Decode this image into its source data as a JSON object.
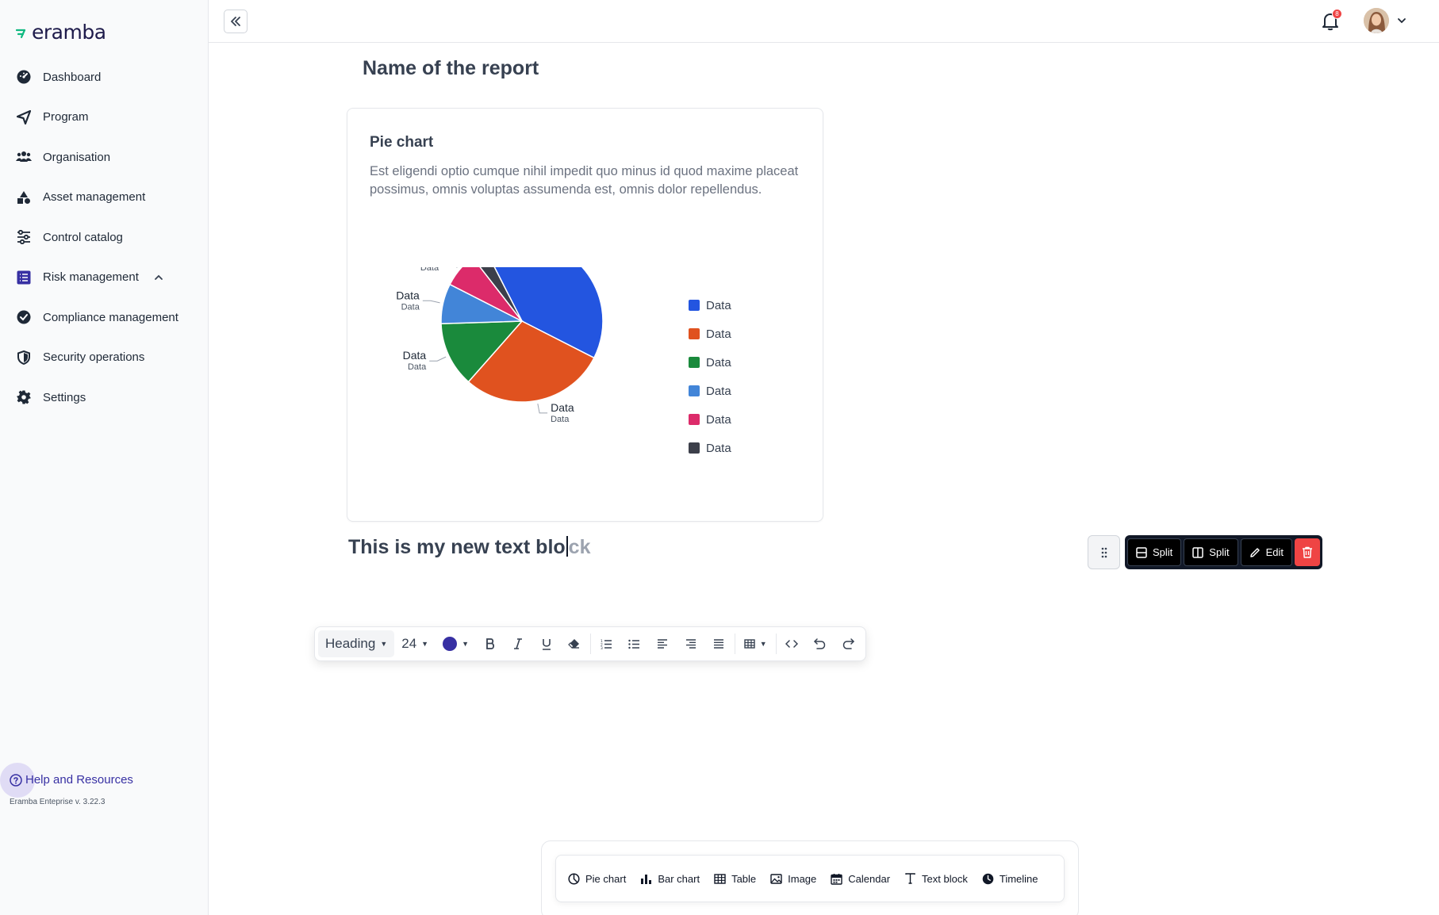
{
  "brand": {
    "name": "eramba",
    "accent": "#10b981"
  },
  "sidebar": {
    "items": [
      {
        "label": "Dashboard",
        "icon": "dashboard-icon"
      },
      {
        "label": "Program",
        "icon": "send-icon"
      },
      {
        "label": "Organisation",
        "icon": "users-icon"
      },
      {
        "label": "Asset management",
        "icon": "shapes-icon"
      },
      {
        "label": "Control catalog",
        "icon": "sliders-icon"
      },
      {
        "label": "Risk management",
        "icon": "list-icon",
        "expanded": true
      },
      {
        "label": "Compliance management",
        "icon": "badge-check-icon"
      },
      {
        "label": "Security operations",
        "icon": "shield-icon"
      },
      {
        "label": "Settings",
        "icon": "gear-icon"
      }
    ],
    "help_label": "Help and Resources",
    "version": "Eramba Enteprise v. 3.22.3"
  },
  "topbar": {
    "notification_count": "8"
  },
  "report": {
    "title": "Name of the report",
    "card": {
      "title": "Pie chart",
      "description": "Est eligendi optio cumque nihil impedit quo minus id quod maxime placeat possimus, omnis voluptas assumenda est, omnis dolor repellendus."
    },
    "text_block": {
      "typed": "This is my new text blo",
      "suggestion": "ck"
    }
  },
  "chart_data": {
    "type": "pie",
    "title": "",
    "slices": [
      {
        "label": "Data",
        "sublabel": "Data",
        "value": 40,
        "color": "#2355e0"
      },
      {
        "label": "Data",
        "sublabel": "Data",
        "value": 29,
        "color": "#e0521f"
      },
      {
        "label": "Data",
        "sublabel": "Data",
        "value": 13,
        "color": "#1a8a3c"
      },
      {
        "label": "Data",
        "sublabel": "Data",
        "value": 8,
        "color": "#4285d8"
      },
      {
        "label": "Data",
        "sublabel": "Data",
        "value": 7,
        "color": "#dc2b6a"
      },
      {
        "label": "Data",
        "sublabel": "Data",
        "value": 3,
        "color": "#3c3f4a"
      }
    ],
    "legend": [
      "Data",
      "Data",
      "Data",
      "Data",
      "Data",
      "Data"
    ],
    "legend_position": "right"
  },
  "block_actions": {
    "split_horizontal": "Split",
    "split_vertical": "Split",
    "edit": "Edit"
  },
  "format_toolbar": {
    "style": "Heading",
    "size": "24",
    "color": "#3730a3"
  },
  "insert_bar": {
    "items": [
      {
        "label": "Pie chart",
        "icon": "pie-chart-icon"
      },
      {
        "label": "Bar chart",
        "icon": "bar-chart-icon"
      },
      {
        "label": "Table",
        "icon": "table-icon"
      },
      {
        "label": "Image",
        "icon": "image-icon"
      },
      {
        "label": "Calendar",
        "icon": "calendar-icon"
      },
      {
        "label": "Text block",
        "icon": "text-icon"
      },
      {
        "label": "Timeline",
        "icon": "clock-icon"
      }
    ]
  }
}
